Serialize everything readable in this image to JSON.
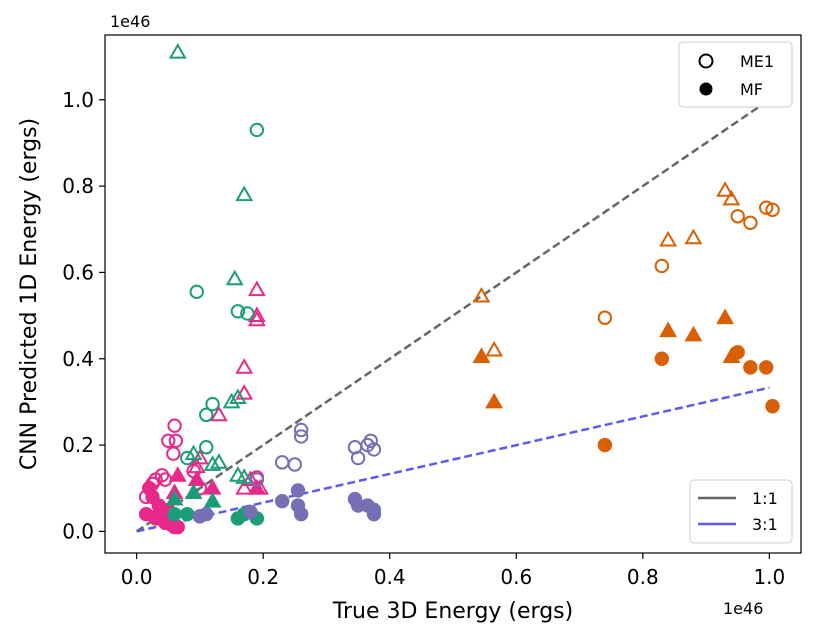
{
  "chart_data": {
    "type": "scatter",
    "title": "",
    "xlabel": "True 3D Energy (ergs)",
    "ylabel": "CNN Predicted 1D Energy (ergs)",
    "x_offset_label": "1e46",
    "y_offset_label": "1e46",
    "xlim": [
      -0.05,
      1.05
    ],
    "ylim": [
      -0.05,
      1.15
    ],
    "xticks": [
      0.0,
      0.2,
      0.4,
      0.6,
      0.8,
      1.0
    ],
    "xtick_labels": [
      "0.0",
      "0.2",
      "0.4",
      "0.6",
      "0.8",
      "1.0"
    ],
    "yticks": [
      0.0,
      0.2,
      0.4,
      0.6,
      0.8,
      1.0
    ],
    "ytick_labels": [
      "0.0",
      "0.2",
      "0.4",
      "0.6",
      "0.8",
      "1.0"
    ],
    "grid": false,
    "marker_legend": {
      "placement": "top-right",
      "entries": [
        {
          "label": "ME1",
          "style": "open-circle"
        },
        {
          "label": "MF",
          "style": "filled-circle"
        }
      ]
    },
    "line_legend": {
      "placement": "bottom-right",
      "entries": [
        {
          "label": "1:1",
          "color": "#666666"
        },
        {
          "label": "3:1",
          "color": "#5b5bf0"
        }
      ]
    },
    "lines": [
      {
        "label": "1:1",
        "x": [
          0.0,
          1.0
        ],
        "y": [
          0.0,
          1.0
        ],
        "color": "#666666",
        "dashed": true
      },
      {
        "label": "3:1",
        "x": [
          0.0,
          1.0
        ],
        "y": [
          0.0,
          0.333
        ],
        "color": "#5b5bf0",
        "dashed": true
      }
    ],
    "series": [
      {
        "color": "#e7298a",
        "points": [
          {
            "x": 0.02,
            "y": 0.1,
            "m": "o"
          },
          {
            "x": 0.03,
            "y": 0.12,
            "m": "o"
          },
          {
            "x": 0.04,
            "y": 0.13,
            "m": "o"
          },
          {
            "x": 0.025,
            "y": 0.11,
            "m": "o"
          },
          {
            "x": 0.045,
            "y": 0.12,
            "m": "o"
          },
          {
            "x": 0.015,
            "y": 0.08,
            "m": "o"
          },
          {
            "x": 0.05,
            "y": 0.21,
            "m": "o"
          },
          {
            "x": 0.06,
            "y": 0.245,
            "m": "o"
          },
          {
            "x": 0.062,
            "y": 0.21,
            "m": "o"
          },
          {
            "x": 0.058,
            "y": 0.18,
            "m": "o"
          },
          {
            "x": 0.09,
            "y": 0.14,
            "m": "o"
          },
          {
            "x": 0.1,
            "y": 0.1,
            "m": "o"
          },
          {
            "x": 0.19,
            "y": 0.125,
            "m": "o"
          },
          {
            "x": 0.1,
            "y": 0.17,
            "m": "t"
          },
          {
            "x": 0.095,
            "y": 0.15,
            "m": "t"
          },
          {
            "x": 0.13,
            "y": 0.27,
            "m": "t"
          },
          {
            "x": 0.17,
            "y": 0.32,
            "m": "t"
          },
          {
            "x": 0.17,
            "y": 0.38,
            "m": "t"
          },
          {
            "x": 0.19,
            "y": 0.49,
            "m": "t"
          },
          {
            "x": 0.19,
            "y": 0.5,
            "m": "t"
          },
          {
            "x": 0.19,
            "y": 0.56,
            "m": "t"
          },
          {
            "x": 0.18,
            "y": 0.12,
            "m": "t"
          },
          {
            "x": 0.17,
            "y": 0.1,
            "m": "t"
          },
          {
            "x": 0.195,
            "y": 0.1,
            "m": "t"
          },
          {
            "x": 0.065,
            "y": 0.13,
            "m": "T"
          },
          {
            "x": 0.095,
            "y": 0.12,
            "m": "T"
          },
          {
            "x": 0.12,
            "y": 0.1,
            "m": "T"
          },
          {
            "x": 0.19,
            "y": 0.1,
            "m": "T"
          },
          {
            "x": 0.06,
            "y": 0.09,
            "m": "T"
          },
          {
            "x": 0.02,
            "y": 0.1,
            "m": "F"
          },
          {
            "x": 0.025,
            "y": 0.08,
            "m": "F"
          },
          {
            "x": 0.035,
            "y": 0.06,
            "m": "F"
          },
          {
            "x": 0.015,
            "y": 0.04,
            "m": "F"
          },
          {
            "x": 0.03,
            "y": 0.03,
            "m": "F"
          },
          {
            "x": 0.045,
            "y": 0.02,
            "m": "F"
          },
          {
            "x": 0.055,
            "y": 0.015,
            "m": "F"
          },
          {
            "x": 0.06,
            "y": 0.01,
            "m": "F"
          },
          {
            "x": 0.065,
            "y": 0.01,
            "m": "F"
          },
          {
            "x": 0.05,
            "y": 0.05,
            "m": "F"
          },
          {
            "x": 0.035,
            "y": 0.04,
            "m": "F"
          }
        ]
      },
      {
        "color": "#1b9e77",
        "points": [
          {
            "x": 0.19,
            "y": 0.93,
            "m": "o"
          },
          {
            "x": 0.095,
            "y": 0.555,
            "m": "o"
          },
          {
            "x": 0.16,
            "y": 0.51,
            "m": "o"
          },
          {
            "x": 0.175,
            "y": 0.505,
            "m": "o"
          },
          {
            "x": 0.12,
            "y": 0.295,
            "m": "o"
          },
          {
            "x": 0.11,
            "y": 0.27,
            "m": "o"
          },
          {
            "x": 0.11,
            "y": 0.195,
            "m": "o"
          },
          {
            "x": 0.08,
            "y": 0.17,
            "m": "o"
          },
          {
            "x": 0.065,
            "y": 1.11,
            "m": "t"
          },
          {
            "x": 0.17,
            "y": 0.78,
            "m": "t"
          },
          {
            "x": 0.155,
            "y": 0.585,
            "m": "t"
          },
          {
            "x": 0.16,
            "y": 0.31,
            "m": "t"
          },
          {
            "x": 0.15,
            "y": 0.3,
            "m": "t"
          },
          {
            "x": 0.09,
            "y": 0.18,
            "m": "t"
          },
          {
            "x": 0.13,
            "y": 0.16,
            "m": "t"
          },
          {
            "x": 0.12,
            "y": 0.155,
            "m": "t"
          },
          {
            "x": 0.16,
            "y": 0.13,
            "m": "t"
          },
          {
            "x": 0.17,
            "y": 0.125,
            "m": "t"
          },
          {
            "x": 0.06,
            "y": 0.075,
            "m": "T"
          },
          {
            "x": 0.12,
            "y": 0.07,
            "m": "T"
          },
          {
            "x": 0.09,
            "y": 0.09,
            "m": "T"
          },
          {
            "x": 0.06,
            "y": 0.04,
            "m": "F"
          },
          {
            "x": 0.08,
            "y": 0.04,
            "m": "F"
          },
          {
            "x": 0.16,
            "y": 0.03,
            "m": "F"
          },
          {
            "x": 0.17,
            "y": 0.04,
            "m": "F"
          },
          {
            "x": 0.19,
            "y": 0.03,
            "m": "F"
          },
          {
            "x": 0.1,
            "y": 0.035,
            "m": "F"
          }
        ]
      },
      {
        "color": "#7570b3",
        "points": [
          {
            "x": 0.26,
            "y": 0.235,
            "m": "o"
          },
          {
            "x": 0.26,
            "y": 0.22,
            "m": "o"
          },
          {
            "x": 0.23,
            "y": 0.16,
            "m": "o"
          },
          {
            "x": 0.25,
            "y": 0.155,
            "m": "o"
          },
          {
            "x": 0.345,
            "y": 0.195,
            "m": "o"
          },
          {
            "x": 0.35,
            "y": 0.17,
            "m": "o"
          },
          {
            "x": 0.365,
            "y": 0.2,
            "m": "o"
          },
          {
            "x": 0.37,
            "y": 0.21,
            "m": "o"
          },
          {
            "x": 0.375,
            "y": 0.19,
            "m": "o"
          },
          {
            "x": 0.19,
            "y": 0.12,
            "m": "o"
          },
          {
            "x": 0.1,
            "y": 0.035,
            "m": "F"
          },
          {
            "x": 0.11,
            "y": 0.04,
            "m": "F"
          },
          {
            "x": 0.18,
            "y": 0.045,
            "m": "F"
          },
          {
            "x": 0.23,
            "y": 0.07,
            "m": "F"
          },
          {
            "x": 0.255,
            "y": 0.095,
            "m": "F"
          },
          {
            "x": 0.255,
            "y": 0.06,
            "m": "F"
          },
          {
            "x": 0.26,
            "y": 0.04,
            "m": "F"
          },
          {
            "x": 0.345,
            "y": 0.075,
            "m": "F"
          },
          {
            "x": 0.35,
            "y": 0.06,
            "m": "F"
          },
          {
            "x": 0.365,
            "y": 0.06,
            "m": "F"
          },
          {
            "x": 0.375,
            "y": 0.05,
            "m": "F"
          },
          {
            "x": 0.375,
            "y": 0.04,
            "m": "F"
          }
        ]
      },
      {
        "color": "#d95f02",
        "points": [
          {
            "x": 0.93,
            "y": 0.79,
            "m": "t"
          },
          {
            "x": 0.94,
            "y": 0.77,
            "m": "t"
          },
          {
            "x": 0.84,
            "y": 0.675,
            "m": "t"
          },
          {
            "x": 0.88,
            "y": 0.68,
            "m": "t"
          },
          {
            "x": 0.545,
            "y": 0.545,
            "m": "t"
          },
          {
            "x": 0.565,
            "y": 0.42,
            "m": "t"
          },
          {
            "x": 0.95,
            "y": 0.73,
            "m": "o"
          },
          {
            "x": 0.97,
            "y": 0.715,
            "m": "o"
          },
          {
            "x": 0.995,
            "y": 0.75,
            "m": "o"
          },
          {
            "x": 1.005,
            "y": 0.745,
            "m": "o"
          },
          {
            "x": 0.83,
            "y": 0.615,
            "m": "o"
          },
          {
            "x": 0.74,
            "y": 0.495,
            "m": "o"
          },
          {
            "x": 0.84,
            "y": 0.465,
            "m": "T"
          },
          {
            "x": 0.88,
            "y": 0.455,
            "m": "T"
          },
          {
            "x": 0.93,
            "y": 0.495,
            "m": "T"
          },
          {
            "x": 0.94,
            "y": 0.405,
            "m": "T"
          },
          {
            "x": 0.545,
            "y": 0.405,
            "m": "T"
          },
          {
            "x": 0.565,
            "y": 0.3,
            "m": "T"
          },
          {
            "x": 0.83,
            "y": 0.4,
            "m": "F"
          },
          {
            "x": 0.95,
            "y": 0.415,
            "m": "F"
          },
          {
            "x": 0.97,
            "y": 0.38,
            "m": "F"
          },
          {
            "x": 0.995,
            "y": 0.38,
            "m": "F"
          },
          {
            "x": 1.005,
            "y": 0.29,
            "m": "F"
          },
          {
            "x": 0.74,
            "y": 0.2,
            "m": "F"
          }
        ]
      }
    ]
  }
}
